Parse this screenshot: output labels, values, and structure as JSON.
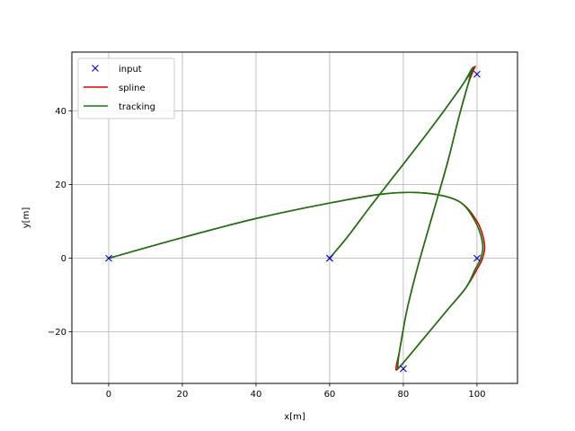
{
  "chart_data": {
    "type": "line",
    "title": "",
    "xlabel": "x[m]",
    "ylabel": "y[m]",
    "xlim": [
      -10,
      111
    ],
    "ylim": [
      -34,
      56
    ],
    "xticks": [
      0,
      20,
      40,
      60,
      80,
      100
    ],
    "yticks": [
      -20,
      0,
      20,
      40
    ],
    "xtick_labels": [
      "0",
      "20",
      "40",
      "60",
      "80",
      "100"
    ],
    "ytick_labels": [
      "−20",
      "0",
      "20",
      "40"
    ],
    "grid": true,
    "legend_position": "top-left",
    "colors": {
      "input": "#0000cc",
      "spline": "#dd0000",
      "tracking": "#117711"
    },
    "series": [
      {
        "name": "input",
        "marker": "x",
        "x": [
          0,
          60,
          100,
          100,
          80,
          60
        ],
        "y": [
          0,
          0,
          50,
          0,
          -30,
          0
        ]
      },
      {
        "name": "spline",
        "x": [
          0,
          20,
          40,
          60,
          75,
          86,
          95,
          100,
          102,
          101.5,
          100,
          97,
          92,
          87,
          82,
          79,
          78,
          79,
          81,
          84,
          88,
          92,
          95,
          97.5,
          99,
          99.5,
          99,
          96,
          91,
          85,
          78,
          71,
          65,
          60
        ],
        "y": [
          0,
          5.6,
          10.8,
          15,
          17.5,
          17.7,
          15.5,
          10,
          4,
          0,
          -3,
          -8,
          -14,
          -20,
          -26,
          -29.5,
          -30,
          -25,
          -14,
          -2,
          12,
          26,
          38,
          47,
          51,
          52,
          51.5,
          47,
          40,
          32,
          23,
          14,
          6,
          0
        ]
      },
      {
        "name": "tracking",
        "x": [
          0,
          20,
          40,
          60,
          75,
          86,
          95,
          99.5,
          101.5,
          101,
          99.5,
          97,
          92,
          87,
          82,
          79,
          78.5,
          79,
          81,
          84,
          88,
          92,
          95,
          97.5,
          98.5,
          99,
          98.5,
          96,
          91,
          85,
          78,
          71,
          65,
          60
        ],
        "y": [
          0,
          5.6,
          10.8,
          15,
          17.5,
          17.7,
          15.5,
          10,
          4,
          0,
          -3,
          -8,
          -14,
          -20,
          -26,
          -29.5,
          -29.5,
          -25,
          -14,
          -2,
          12,
          26,
          38,
          47,
          51,
          51.8,
          51.3,
          47,
          40,
          32,
          23,
          14,
          6,
          0
        ]
      }
    ]
  }
}
